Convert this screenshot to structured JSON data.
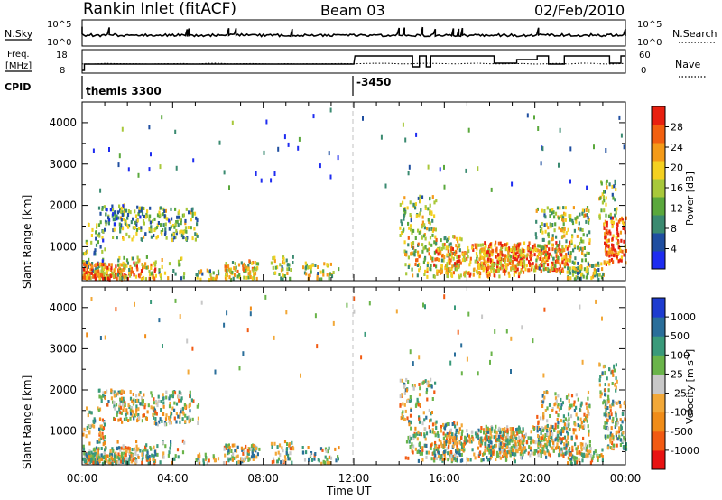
{
  "header": {
    "title": "Rankin Inlet (fitACF)",
    "beam": "Beam 03",
    "date": "02/Feb/2010"
  },
  "colors": {
    "power": [
      "#1e2cf0",
      "#1f4ea0",
      "#3a8a70",
      "#5aa83c",
      "#a8c83a",
      "#f4d020",
      "#f49a18",
      "#f26010",
      "#e82010"
    ],
    "velocity": [
      "#e81212",
      "#f25a12",
      "#f08c18",
      "#f2a838",
      "#c8c8c8",
      "#6ab44a",
      "#3a9a7a",
      "#2a6e9a",
      "#1e3cd0"
    ]
  },
  "chart_data": [
    {
      "panel": "noise",
      "type": "line",
      "left_label": "N.Sky",
      "right_label": "N.Search",
      "left_ticks": [
        "10^5",
        "10^0"
      ],
      "right_ticks": [
        "10^5",
        "10^0"
      ]
    },
    {
      "panel": "freq",
      "type": "line",
      "left_label_1": "Freq.",
      "left_label_2": "[MHz]",
      "right_label": "Nave",
      "left_ticks": [
        "18",
        "8"
      ],
      "right_ticks": [
        "60",
        "0"
      ]
    },
    {
      "panel": "cpid",
      "type": "table",
      "label": "CPID",
      "segments": [
        {
          "x_start": 0,
          "x_end": 12,
          "label": "themis 3300"
        },
        {
          "x_start": 12,
          "x_end": 24,
          "label": "-3450"
        }
      ]
    },
    {
      "panel": "power",
      "type": "heatmap",
      "ylabel": "Slant Range [km]",
      "yticks": [
        1000,
        2000,
        3000,
        4000
      ],
      "ylim": [
        180,
        4500
      ],
      "xlim": [
        0,
        24
      ],
      "colorbar_label": "Power [dB]",
      "colorbar_ticks": [
        "4",
        "8",
        "12",
        "16",
        "20",
        "24",
        "28"
      ]
    },
    {
      "panel": "velocity",
      "type": "heatmap",
      "ylabel": "Slant Range [km]",
      "yticks": [
        1000,
        2000,
        3000,
        4000
      ],
      "ylim": [
        180,
        4500
      ],
      "xlim": [
        0,
        24
      ],
      "colorbar_label": "Velocity [m s",
      "colorbar_label_sup": "-1",
      "colorbar_label_end": "]",
      "colorbar_ticks": [
        "1000",
        "500",
        "100",
        "25",
        "-25",
        "-100",
        "-500",
        "-1000"
      ]
    }
  ],
  "time_axis": {
    "xlabel": "Time UT",
    "ticks": [
      {
        "hour": 0,
        "label": "00:00"
      },
      {
        "hour": 4,
        "label": "04:00"
      },
      {
        "hour": 8,
        "label": "08:00"
      },
      {
        "hour": 12,
        "label": "12:00"
      },
      {
        "hour": 16,
        "label": "16:00"
      },
      {
        "hour": 20,
        "label": "20:00"
      },
      {
        "hour": 24,
        "label": "00:00"
      }
    ]
  }
}
